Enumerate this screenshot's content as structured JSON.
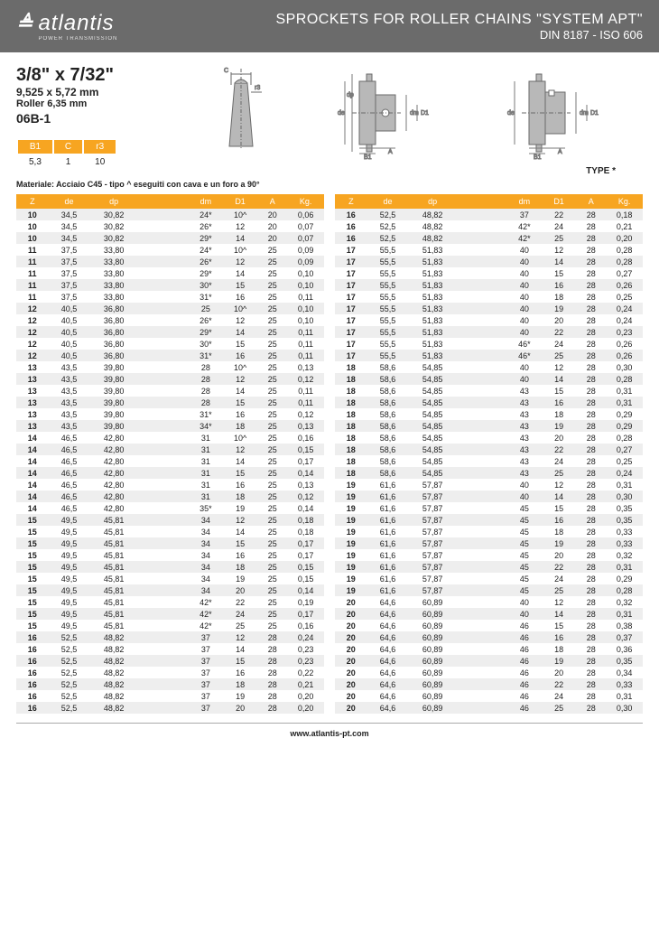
{
  "header": {
    "logo_text": "atlantis",
    "logo_sub": "POWER TRANSMISSION",
    "title": "SPROCKETS FOR ROLLER CHAINS \"SYSTEM APT\"",
    "subtitle": "DIN 8187 - ISO 606"
  },
  "spec": {
    "size_imperial": "3/8\" x 7/32\"",
    "size_metric": "9,525 x 5,72 mm",
    "roller": "Roller 6,35 mm",
    "code": "06B-1"
  },
  "mini": {
    "headers": [
      "B1",
      "C",
      "r3"
    ],
    "values": [
      "5,3",
      "1",
      "10"
    ]
  },
  "type_label": "TYPE *",
  "material": "Materiale: Acciaio C45 - tipo ^ eseguiti con cava e un foro a 90°",
  "table_headers": [
    "Z",
    "de",
    "dp",
    "",
    "dm",
    "D1",
    "A",
    "Kg."
  ],
  "table_left": [
    [
      "10",
      "34,5",
      "30,82",
      "",
      "24*",
      "10^",
      "20",
      "0,06"
    ],
    [
      "10",
      "34,5",
      "30,82",
      "",
      "26*",
      "12",
      "20",
      "0,07"
    ],
    [
      "10",
      "34,5",
      "30,82",
      "",
      "29*",
      "14",
      "20",
      "0,07"
    ],
    [
      "11",
      "37,5",
      "33,80",
      "",
      "24*",
      "10^",
      "25",
      "0,09"
    ],
    [
      "11",
      "37,5",
      "33,80",
      "",
      "26*",
      "12",
      "25",
      "0,09"
    ],
    [
      "11",
      "37,5",
      "33,80",
      "",
      "29*",
      "14",
      "25",
      "0,10"
    ],
    [
      "11",
      "37,5",
      "33,80",
      "",
      "30*",
      "15",
      "25",
      "0,10"
    ],
    [
      "11",
      "37,5",
      "33,80",
      "",
      "31*",
      "16",
      "25",
      "0,11"
    ],
    [
      "12",
      "40,5",
      "36,80",
      "",
      "25",
      "10^",
      "25",
      "0,10"
    ],
    [
      "12",
      "40,5",
      "36,80",
      "",
      "26*",
      "12",
      "25",
      "0,10"
    ],
    [
      "12",
      "40,5",
      "36,80",
      "",
      "29*",
      "14",
      "25",
      "0,11"
    ],
    [
      "12",
      "40,5",
      "36,80",
      "",
      "30*",
      "15",
      "25",
      "0,11"
    ],
    [
      "12",
      "40,5",
      "36,80",
      "",
      "31*",
      "16",
      "25",
      "0,11"
    ],
    [
      "13",
      "43,5",
      "39,80",
      "",
      "28",
      "10^",
      "25",
      "0,13"
    ],
    [
      "13",
      "43,5",
      "39,80",
      "",
      "28",
      "12",
      "25",
      "0,12"
    ],
    [
      "13",
      "43,5",
      "39,80",
      "",
      "28",
      "14",
      "25",
      "0,11"
    ],
    [
      "13",
      "43,5",
      "39,80",
      "",
      "28",
      "15",
      "25",
      "0,11"
    ],
    [
      "13",
      "43,5",
      "39,80",
      "",
      "31*",
      "16",
      "25",
      "0,12"
    ],
    [
      "13",
      "43,5",
      "39,80",
      "",
      "34*",
      "18",
      "25",
      "0,13"
    ],
    [
      "14",
      "46,5",
      "42,80",
      "",
      "31",
      "10^",
      "25",
      "0,16"
    ],
    [
      "14",
      "46,5",
      "42,80",
      "",
      "31",
      "12",
      "25",
      "0,15"
    ],
    [
      "14",
      "46,5",
      "42,80",
      "",
      "31",
      "14",
      "25",
      "0,17"
    ],
    [
      "14",
      "46,5",
      "42,80",
      "",
      "31",
      "15",
      "25",
      "0,14"
    ],
    [
      "14",
      "46,5",
      "42,80",
      "",
      "31",
      "16",
      "25",
      "0,13"
    ],
    [
      "14",
      "46,5",
      "42,80",
      "",
      "31",
      "18",
      "25",
      "0,12"
    ],
    [
      "14",
      "46,5",
      "42,80",
      "",
      "35*",
      "19",
      "25",
      "0,14"
    ],
    [
      "15",
      "49,5",
      "45,81",
      "",
      "34",
      "12",
      "25",
      "0,18"
    ],
    [
      "15",
      "49,5",
      "45,81",
      "",
      "34",
      "14",
      "25",
      "0,18"
    ],
    [
      "15",
      "49,5",
      "45,81",
      "",
      "34",
      "15",
      "25",
      "0,17"
    ],
    [
      "15",
      "49,5",
      "45,81",
      "",
      "34",
      "16",
      "25",
      "0,17"
    ],
    [
      "15",
      "49,5",
      "45,81",
      "",
      "34",
      "18",
      "25",
      "0,15"
    ],
    [
      "15",
      "49,5",
      "45,81",
      "",
      "34",
      "19",
      "25",
      "0,15"
    ],
    [
      "15",
      "49,5",
      "45,81",
      "",
      "34",
      "20",
      "25",
      "0,14"
    ],
    [
      "15",
      "49,5",
      "45,81",
      "",
      "42*",
      "22",
      "25",
      "0,19"
    ],
    [
      "15",
      "49,5",
      "45,81",
      "",
      "42*",
      "24",
      "25",
      "0,17"
    ],
    [
      "15",
      "49,5",
      "45,81",
      "",
      "42*",
      "25",
      "25",
      "0,16"
    ],
    [
      "16",
      "52,5",
      "48,82",
      "",
      "37",
      "12",
      "28",
      "0,24"
    ],
    [
      "16",
      "52,5",
      "48,82",
      "",
      "37",
      "14",
      "28",
      "0,23"
    ],
    [
      "16",
      "52,5",
      "48,82",
      "",
      "37",
      "15",
      "28",
      "0,23"
    ],
    [
      "16",
      "52,5",
      "48,82",
      "",
      "37",
      "16",
      "28",
      "0,22"
    ],
    [
      "16",
      "52,5",
      "48,82",
      "",
      "37",
      "18",
      "28",
      "0,21"
    ],
    [
      "16",
      "52,5",
      "48,82",
      "",
      "37",
      "19",
      "28",
      "0,20"
    ],
    [
      "16",
      "52,5",
      "48,82",
      "",
      "37",
      "20",
      "28",
      "0,20"
    ]
  ],
  "table_right": [
    [
      "16",
      "52,5",
      "48,82",
      "",
      "37",
      "22",
      "28",
      "0,18"
    ],
    [
      "16",
      "52,5",
      "48,82",
      "",
      "42*",
      "24",
      "28",
      "0,21"
    ],
    [
      "16",
      "52,5",
      "48,82",
      "",
      "42*",
      "25",
      "28",
      "0,20"
    ],
    [
      "17",
      "55,5",
      "51,83",
      "",
      "40",
      "12",
      "28",
      "0,28"
    ],
    [
      "17",
      "55,5",
      "51,83",
      "",
      "40",
      "14",
      "28",
      "0,28"
    ],
    [
      "17",
      "55,5",
      "51,83",
      "",
      "40",
      "15",
      "28",
      "0,27"
    ],
    [
      "17",
      "55,5",
      "51,83",
      "",
      "40",
      "16",
      "28",
      "0,26"
    ],
    [
      "17",
      "55,5",
      "51,83",
      "",
      "40",
      "18",
      "28",
      "0,25"
    ],
    [
      "17",
      "55,5",
      "51,83",
      "",
      "40",
      "19",
      "28",
      "0,24"
    ],
    [
      "17",
      "55,5",
      "51,83",
      "",
      "40",
      "20",
      "28",
      "0,24"
    ],
    [
      "17",
      "55,5",
      "51,83",
      "",
      "40",
      "22",
      "28",
      "0,23"
    ],
    [
      "17",
      "55,5",
      "51,83",
      "",
      "46*",
      "24",
      "28",
      "0,26"
    ],
    [
      "17",
      "55,5",
      "51,83",
      "",
      "46*",
      "25",
      "28",
      "0,26"
    ],
    [
      "18",
      "58,6",
      "54,85",
      "",
      "40",
      "12",
      "28",
      "0,30"
    ],
    [
      "18",
      "58,6",
      "54,85",
      "",
      "40",
      "14",
      "28",
      "0,28"
    ],
    [
      "18",
      "58,6",
      "54,85",
      "",
      "43",
      "15",
      "28",
      "0,31"
    ],
    [
      "18",
      "58,6",
      "54,85",
      "",
      "43",
      "16",
      "28",
      "0,31"
    ],
    [
      "18",
      "58,6",
      "54,85",
      "",
      "43",
      "18",
      "28",
      "0,29"
    ],
    [
      "18",
      "58,6",
      "54,85",
      "",
      "43",
      "19",
      "28",
      "0,29"
    ],
    [
      "18",
      "58,6",
      "54,85",
      "",
      "43",
      "20",
      "28",
      "0,28"
    ],
    [
      "18",
      "58,6",
      "54,85",
      "",
      "43",
      "22",
      "28",
      "0,27"
    ],
    [
      "18",
      "58,6",
      "54,85",
      "",
      "43",
      "24",
      "28",
      "0,25"
    ],
    [
      "18",
      "58,6",
      "54,85",
      "",
      "43",
      "25",
      "28",
      "0,24"
    ],
    [
      "19",
      "61,6",
      "57,87",
      "",
      "40",
      "12",
      "28",
      "0,31"
    ],
    [
      "19",
      "61,6",
      "57,87",
      "",
      "40",
      "14",
      "28",
      "0,30"
    ],
    [
      "19",
      "61,6",
      "57,87",
      "",
      "45",
      "15",
      "28",
      "0,35"
    ],
    [
      "19",
      "61,6",
      "57,87",
      "",
      "45",
      "16",
      "28",
      "0,35"
    ],
    [
      "19",
      "61,6",
      "57,87",
      "",
      "45",
      "18",
      "28",
      "0,33"
    ],
    [
      "19",
      "61,6",
      "57,87",
      "",
      "45",
      "19",
      "28",
      "0,33"
    ],
    [
      "19",
      "61,6",
      "57,87",
      "",
      "45",
      "20",
      "28",
      "0,32"
    ],
    [
      "19",
      "61,6",
      "57,87",
      "",
      "45",
      "22",
      "28",
      "0,31"
    ],
    [
      "19",
      "61,6",
      "57,87",
      "",
      "45",
      "24",
      "28",
      "0,29"
    ],
    [
      "19",
      "61,6",
      "57,87",
      "",
      "45",
      "25",
      "28",
      "0,28"
    ],
    [
      "20",
      "64,6",
      "60,89",
      "",
      "40",
      "12",
      "28",
      "0,32"
    ],
    [
      "20",
      "64,6",
      "60,89",
      "",
      "40",
      "14",
      "28",
      "0,31"
    ],
    [
      "20",
      "64,6",
      "60,89",
      "",
      "46",
      "15",
      "28",
      "0,38"
    ],
    [
      "20",
      "64,6",
      "60,89",
      "",
      "46",
      "16",
      "28",
      "0,37"
    ],
    [
      "20",
      "64,6",
      "60,89",
      "",
      "46",
      "18",
      "28",
      "0,36"
    ],
    [
      "20",
      "64,6",
      "60,89",
      "",
      "46",
      "19",
      "28",
      "0,35"
    ],
    [
      "20",
      "64,6",
      "60,89",
      "",
      "46",
      "20",
      "28",
      "0,34"
    ],
    [
      "20",
      "64,6",
      "60,89",
      "",
      "46",
      "22",
      "28",
      "0,33"
    ],
    [
      "20",
      "64,6",
      "60,89",
      "",
      "46",
      "24",
      "28",
      "0,31"
    ],
    [
      "20",
      "64,6",
      "60,89",
      "",
      "46",
      "25",
      "28",
      "0,30"
    ]
  ],
  "footer": "www.atlantis-pt.com"
}
